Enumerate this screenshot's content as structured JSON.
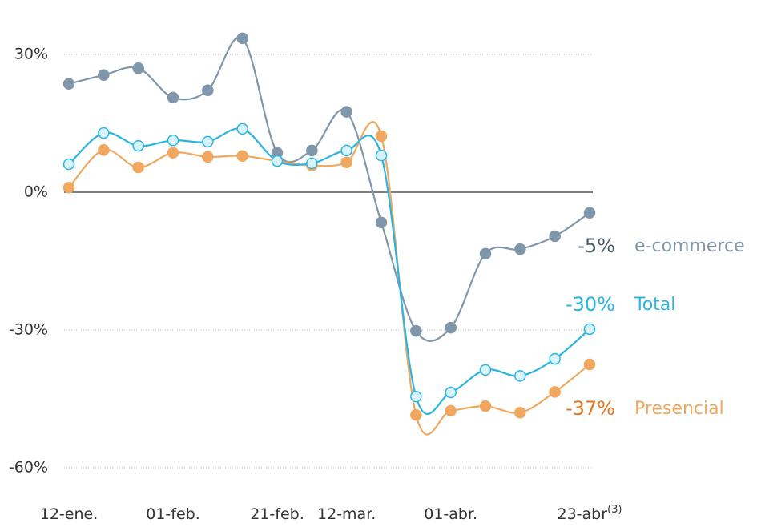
{
  "chart_data": {
    "type": "line",
    "categories": [
      "12-ene.",
      null,
      null,
      "01-feb.",
      null,
      null,
      "21-feb.",
      null,
      "12-mar.",
      null,
      null,
      "01-abr.",
      null,
      null,
      null,
      "23-abr"
    ],
    "x_label_note": "(3)",
    "series": [
      {
        "name": "e-commerce",
        "color": "#7f96ab",
        "label_color": "#4b5b6b",
        "marker_fill": "#7f96ab",
        "value_label": "-5%",
        "values": [
          23.6,
          25.5,
          27,
          20.6,
          22.2,
          33.5,
          8.6,
          9.1,
          17.5,
          -6.6,
          -30.2,
          -29.5,
          -13.4,
          -12.4,
          -9.6,
          -4.5
        ]
      },
      {
        "name": "Presencial",
        "color": "#f0a860",
        "label_color": "#e8761e",
        "marker_fill": "#f0a860",
        "value_label": "-37%",
        "values": [
          1,
          9.2,
          5.4,
          8.6,
          7.7,
          7.9,
          6.8,
          5.8,
          6.5,
          12.2,
          -48.5,
          -47.6,
          -46.6,
          -48,
          -43.5,
          -37.5
        ]
      },
      {
        "name": "Total",
        "color": "#29b5e3",
        "label_color": "#29b5e3",
        "marker_fill": "#d8f3fb",
        "value_label": "-30%",
        "values": [
          6.1,
          12.9,
          10.1,
          11.3,
          11,
          13.8,
          6.8,
          6.3,
          9.1,
          8,
          -44.5,
          -43.6,
          -38.7,
          -40,
          -36.3,
          -29.8
        ]
      }
    ],
    "ylim": [
      -68,
      40
    ],
    "yticks": [
      {
        "value": 30,
        "label": "30%"
      },
      {
        "value": 0,
        "label": "0%"
      },
      {
        "value": -30,
        "label": "-30%"
      },
      {
        "value": -60,
        "label": "-60%"
      }
    ],
    "grid": true
  }
}
